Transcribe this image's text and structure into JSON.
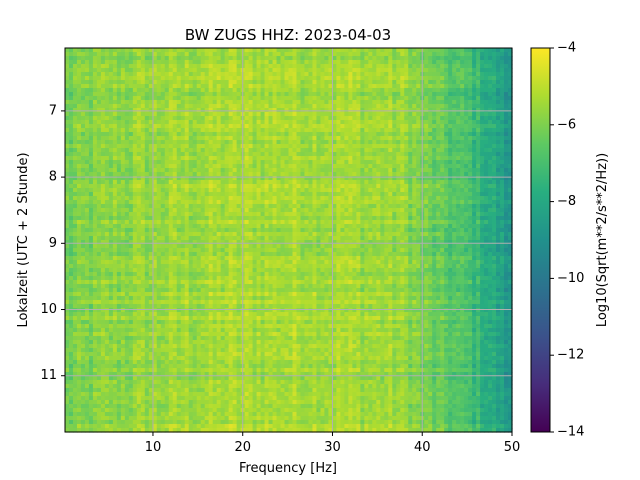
{
  "chart_data": {
    "type": "heatmap",
    "title": "BW ZUGS  HHZ: 2023-04-03",
    "xlabel": "Frequency [Hz]",
    "ylabel": "Lokalzeit (UTC + 2 Stunde)",
    "xlim": [
      0.2,
      50
    ],
    "ylim": [
      11.85,
      6.05
    ],
    "y_inverted": true,
    "x_ticks": [
      10,
      20,
      30,
      40,
      50
    ],
    "y_ticks": [
      7,
      8,
      9,
      10,
      11
    ],
    "grid": true,
    "colormap": "viridis",
    "colorbar": {
      "label": "Log10(Sqrt(m**2/s**2/Hz))",
      "range": [
        -14,
        -4
      ],
      "ticks": [
        -4,
        -6,
        -8,
        -10,
        -12,
        -14
      ]
    },
    "value_profile_by_frequency": [
      {
        "x": 0.5,
        "value": -6.2
      },
      {
        "x": 5,
        "value": -5.8
      },
      {
        "x": 10,
        "value": -5.6
      },
      {
        "x": 20,
        "value": -5.3
      },
      {
        "x": 30,
        "value": -5.3
      },
      {
        "x": 38,
        "value": -5.6
      },
      {
        "x": 42,
        "value": -6.5
      },
      {
        "x": 45,
        "value": -7.0
      },
      {
        "x": 48,
        "value": -8.0
      },
      {
        "x": 50,
        "value": -9.0
      }
    ]
  }
}
